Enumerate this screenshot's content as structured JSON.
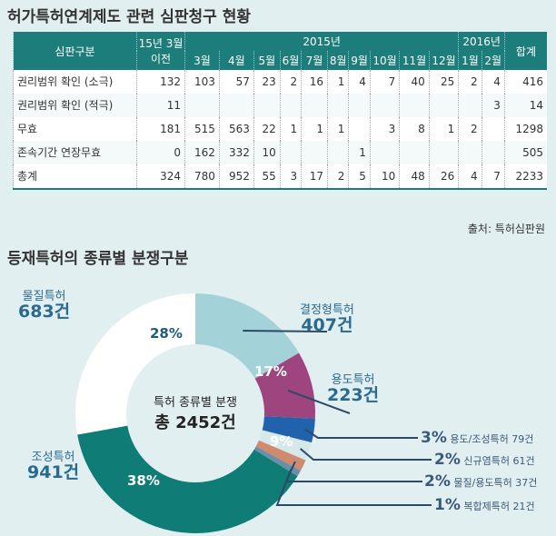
{
  "title": "허가특허연계제도 관련 심판청구 현황",
  "source": "출처: 특허심판원",
  "chart_data": [
    {
      "type": "table",
      "header": {
        "col0": "심판구분",
        "col1": "15년 3월 이전",
        "year2015": "2015년",
        "year2016": "2016년",
        "total": "합계",
        "months": [
          "3월",
          "4월",
          "5월",
          "6월",
          "7월",
          "8월",
          "9월",
          "10월",
          "11월",
          "12월",
          "1월",
          "2월"
        ]
      },
      "rows": [
        {
          "label": "권리범위 확인 (소극)",
          "values": [
            "132",
            "103",
            "57",
            "23",
            "2",
            "16",
            "1",
            "4",
            "7",
            "40",
            "25",
            "2",
            "4",
            "416"
          ]
        },
        {
          "label": "권리범위 확인 (적극)",
          "values": [
            "11",
            "",
            "",
            "",
            "",
            "",
            "",
            "",
            "",
            "",
            "",
            "",
            "3",
            "14"
          ]
        },
        {
          "label": "무효",
          "values": [
            "181",
            "515",
            "563",
            "22",
            "1",
            "1",
            "1",
            "",
            "3",
            "8",
            "1",
            "2",
            "",
            "1298"
          ]
        },
        {
          "label": "존속기간 연장무효",
          "values": [
            "0",
            "162",
            "332",
            "10",
            "",
            "",
            "",
            "1",
            "",
            "",
            "",
            "",
            "",
            "505"
          ]
        },
        {
          "label": "총계",
          "values": [
            "324",
            "780",
            "952",
            "55",
            "3",
            "17",
            "2",
            "5",
            "10",
            "48",
            "26",
            "4",
            "7",
            "2233"
          ]
        }
      ]
    },
    {
      "type": "pie",
      "title": "등재특허의 종류별 분쟁구분",
      "center_label": "특허 종류별 분쟁",
      "center_total": "총 2452건",
      "slices": [
        {
          "name": "결정형특허",
          "count": "407건",
          "pct": "17%",
          "value": 407,
          "color": "#a3d2d8"
        },
        {
          "name": "용도특허",
          "count": "223건",
          "pct": "9%",
          "value": 223,
          "color": "#9e4580"
        },
        {
          "name": "용도/조성특허 79건",
          "pct": "3%",
          "value": 79,
          "color": "#2062ab"
        },
        {
          "name": "신규염특허 61건",
          "pct": "2%",
          "value": 61,
          "color": "#d5e9ea"
        },
        {
          "name": "물질/용도특허 37건",
          "pct": "2%",
          "value": 37,
          "color": "#d08a70"
        },
        {
          "name": "복합제특허 21건",
          "pct": "1%",
          "value": 21,
          "color": "#6c8fa6"
        },
        {
          "name": "조성특허",
          "count": "941건",
          "pct": "38%",
          "value": 941,
          "color": "#0f7c76"
        },
        {
          "name": "물질특허",
          "count": "683건",
          "pct": "28%",
          "value": 683,
          "color": "#ffffff"
        }
      ]
    }
  ]
}
